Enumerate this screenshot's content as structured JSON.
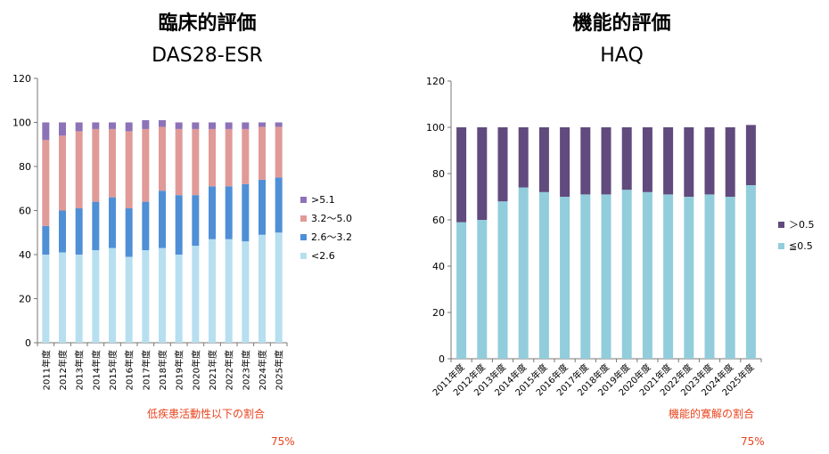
{
  "chart_data": [
    {
      "type": "bar",
      "stacked": true,
      "heading": "臨床的評価",
      "title": "DAS28-ESR",
      "categories": [
        "2011年度",
        "2012年度",
        "2013年度",
        "2014年度",
        "2015年度",
        "2016年度",
        "2017年度",
        "2018年度",
        "2019年度",
        "2020年度",
        "2021年度",
        "2022年度",
        "2023年度",
        "2024年度",
        "2025年度"
      ],
      "ylim": [
        0,
        120
      ],
      "yticks": [
        0,
        20,
        40,
        60,
        80,
        100,
        120
      ],
      "legend_placement": "right",
      "grid": false,
      "series": [
        {
          "name": "<2.6",
          "color": "#b7dff0",
          "values": [
            40,
            41,
            40,
            42,
            43,
            39,
            42,
            43,
            40,
            44,
            47,
            47,
            46,
            49,
            50
          ]
        },
        {
          "name": "2.6～3.2",
          "color": "#4f8fd6",
          "values": [
            13,
            19,
            21,
            22,
            23,
            22,
            22,
            26,
            27,
            23,
            24,
            24,
            26,
            25,
            25
          ]
        },
        {
          "name": "3.2～5.0",
          "color": "#e09a98",
          "values": [
            39,
            34,
            35,
            33,
            31,
            35,
            33,
            29,
            30,
            30,
            26,
            26,
            25,
            24,
            23
          ]
        },
        {
          "name": ">5.1",
          "color": "#8c73b8",
          "values": [
            8,
            6,
            4,
            3,
            3,
            4,
            4,
            3,
            3,
            3,
            3,
            3,
            3,
            2,
            2
          ]
        }
      ],
      "note": "低疾患活動性以下の割合",
      "note_value": "75%"
    },
    {
      "type": "bar",
      "stacked": true,
      "heading": "機能的評価",
      "title": "HAQ",
      "categories": [
        "2011年度",
        "2012年度",
        "2013年度",
        "2014年度",
        "2015年度",
        "2016年度",
        "2017年度",
        "2018年度",
        "2019年度",
        "2020年度",
        "2021年度",
        "2022年度",
        "2023年度",
        "2024年度",
        "2025年度"
      ],
      "ylim": [
        0,
        120
      ],
      "yticks": [
        0,
        20,
        40,
        60,
        80,
        100,
        120
      ],
      "legend_placement": "right",
      "grid": false,
      "series": [
        {
          "name": "≦0.5",
          "color": "#92cddc",
          "values": [
            59,
            60,
            68,
            74,
            72,
            70,
            71,
            71,
            73,
            72,
            71,
            70,
            71,
            70,
            75
          ]
        },
        {
          "name": "＞0.5",
          "color": "#614a7d",
          "values": [
            41,
            40,
            32,
            26,
            28,
            30,
            29,
            29,
            27,
            28,
            29,
            30,
            29,
            30,
            26
          ]
        }
      ],
      "note": "機能的寛解の割合",
      "note_value": "75%"
    }
  ]
}
